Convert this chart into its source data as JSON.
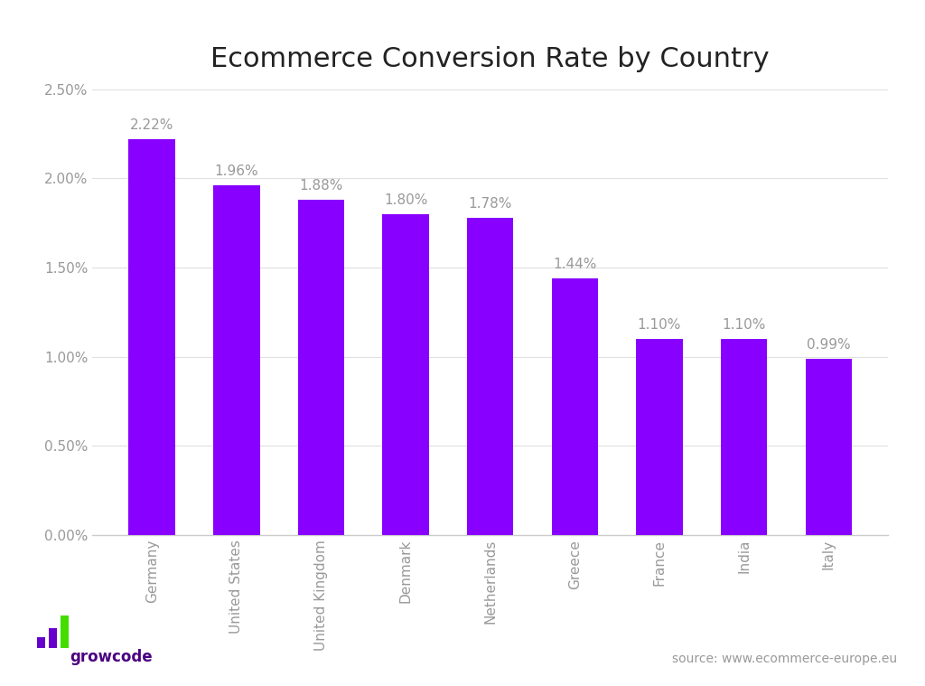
{
  "title": "Ecommerce Conversion Rate by Country",
  "categories": [
    "Germany",
    "United States",
    "United Kingdom",
    "Denmark",
    "Netherlands",
    "Greece",
    "France",
    "India",
    "Italy"
  ],
  "values": [
    2.22,
    1.96,
    1.88,
    1.8,
    1.78,
    1.44,
    1.1,
    1.1,
    0.99
  ],
  "value_labels": [
    "2.22%",
    "1.96%",
    "1.88%",
    "1.80%",
    "1.78%",
    "1.44%",
    "1.10%",
    "1.10%",
    "0.99%"
  ],
  "bar_color": "#8800ff",
  "background_color": "#ffffff",
  "title_fontsize": 22,
  "label_fontsize": 11,
  "tick_fontsize": 11,
  "ylim": [
    0,
    2.5
  ],
  "yticks": [
    0.0,
    0.5,
    1.0,
    1.5,
    2.0,
    2.5
  ],
  "ytick_labels": [
    "0.00%",
    "0.50%",
    "1.00%",
    "1.50%",
    "2.00%",
    "2.50%"
  ],
  "source_text": "source: www.ecommerce-europe.eu",
  "source_fontsize": 10,
  "grid_color": "#e0e0e0",
  "axis_color": "#cccccc",
  "tick_color": "#999999",
  "value_label_color": "#999999",
  "bar_width": 0.55,
  "growcode_text_color": "#4a0080",
  "growcode_icon_purple": "#6600cc",
  "growcode_icon_green": "#44dd00"
}
